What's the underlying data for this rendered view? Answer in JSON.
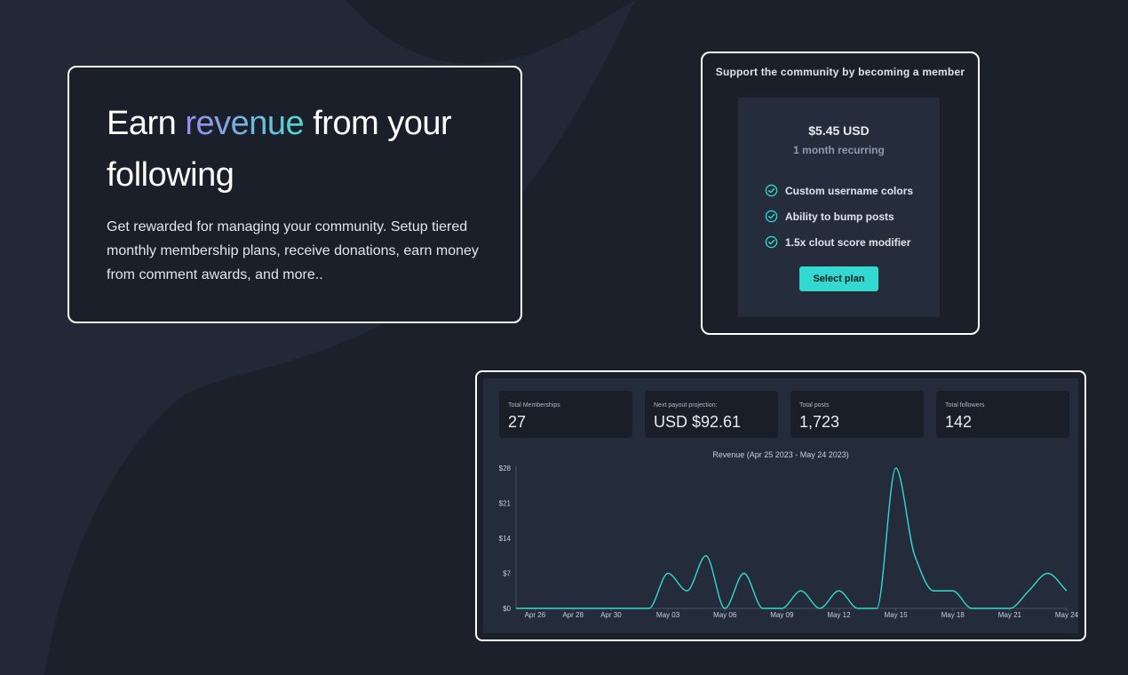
{
  "hero": {
    "title_before": "Earn",
    "title_highlight": "revenue",
    "title_after": "from your following",
    "description": "Get rewarded for managing your community. Setup tiered monthly membership plans, receive donations, earn money from comment awards, and more.."
  },
  "membership": {
    "title": "Support the community by becoming a member",
    "price": "$5.45 USD",
    "period": "1 month recurring",
    "features": [
      "Custom username colors",
      "Ability to bump posts",
      "1.5x clout score modifier"
    ],
    "select_label": "Select plan",
    "accent_color": "#33d9d0"
  },
  "dashboard": {
    "stats": [
      {
        "label": "Total Memberships",
        "value": "27"
      },
      {
        "label": "Next payout projection:",
        "value": "USD $92.61"
      },
      {
        "label": "Total posts",
        "value": "1,723"
      },
      {
        "label": "Total followers",
        "value": "142"
      }
    ]
  },
  "chart_data": {
    "type": "line",
    "title": "Revenue (Apr 25 2023 - May 24 2023)",
    "x": [
      "Apr 25",
      "Apr 26",
      "Apr 27",
      "Apr 28",
      "Apr 29",
      "Apr 30",
      "May 01",
      "May 02",
      "May 03",
      "May 04",
      "May 05",
      "May 06",
      "May 07",
      "May 08",
      "May 09",
      "May 10",
      "May 11",
      "May 12",
      "May 13",
      "May 14",
      "May 15",
      "May 16",
      "May 17",
      "May 18",
      "May 19",
      "May 20",
      "May 21",
      "May 22",
      "May 23",
      "May 24"
    ],
    "values": [
      0,
      0,
      0,
      0,
      0,
      0,
      0,
      0,
      7,
      3.5,
      10.5,
      0,
      7,
      0,
      0,
      3.5,
      0,
      3.5,
      0,
      0,
      28,
      10.5,
      3.5,
      3.5,
      0,
      0,
      0,
      3.5,
      7,
      3.5
    ],
    "x_tick_labels": [
      "Apr 26",
      "Apr 28",
      "Apr 30",
      "May 03",
      "May 06",
      "May 09",
      "May 12",
      "May 15",
      "May 18",
      "May 21",
      "May 24"
    ],
    "x_tick_indices": [
      1,
      3,
      5,
      8,
      11,
      14,
      17,
      20,
      23,
      26,
      29
    ],
    "y_ticks": [
      0,
      7,
      14,
      21,
      28
    ],
    "y_tick_labels": [
      "$0",
      "$7",
      "$14",
      "$21",
      "$28"
    ],
    "ylim": [
      0,
      28
    ],
    "line_color": "#33d9d0",
    "grid": false
  }
}
